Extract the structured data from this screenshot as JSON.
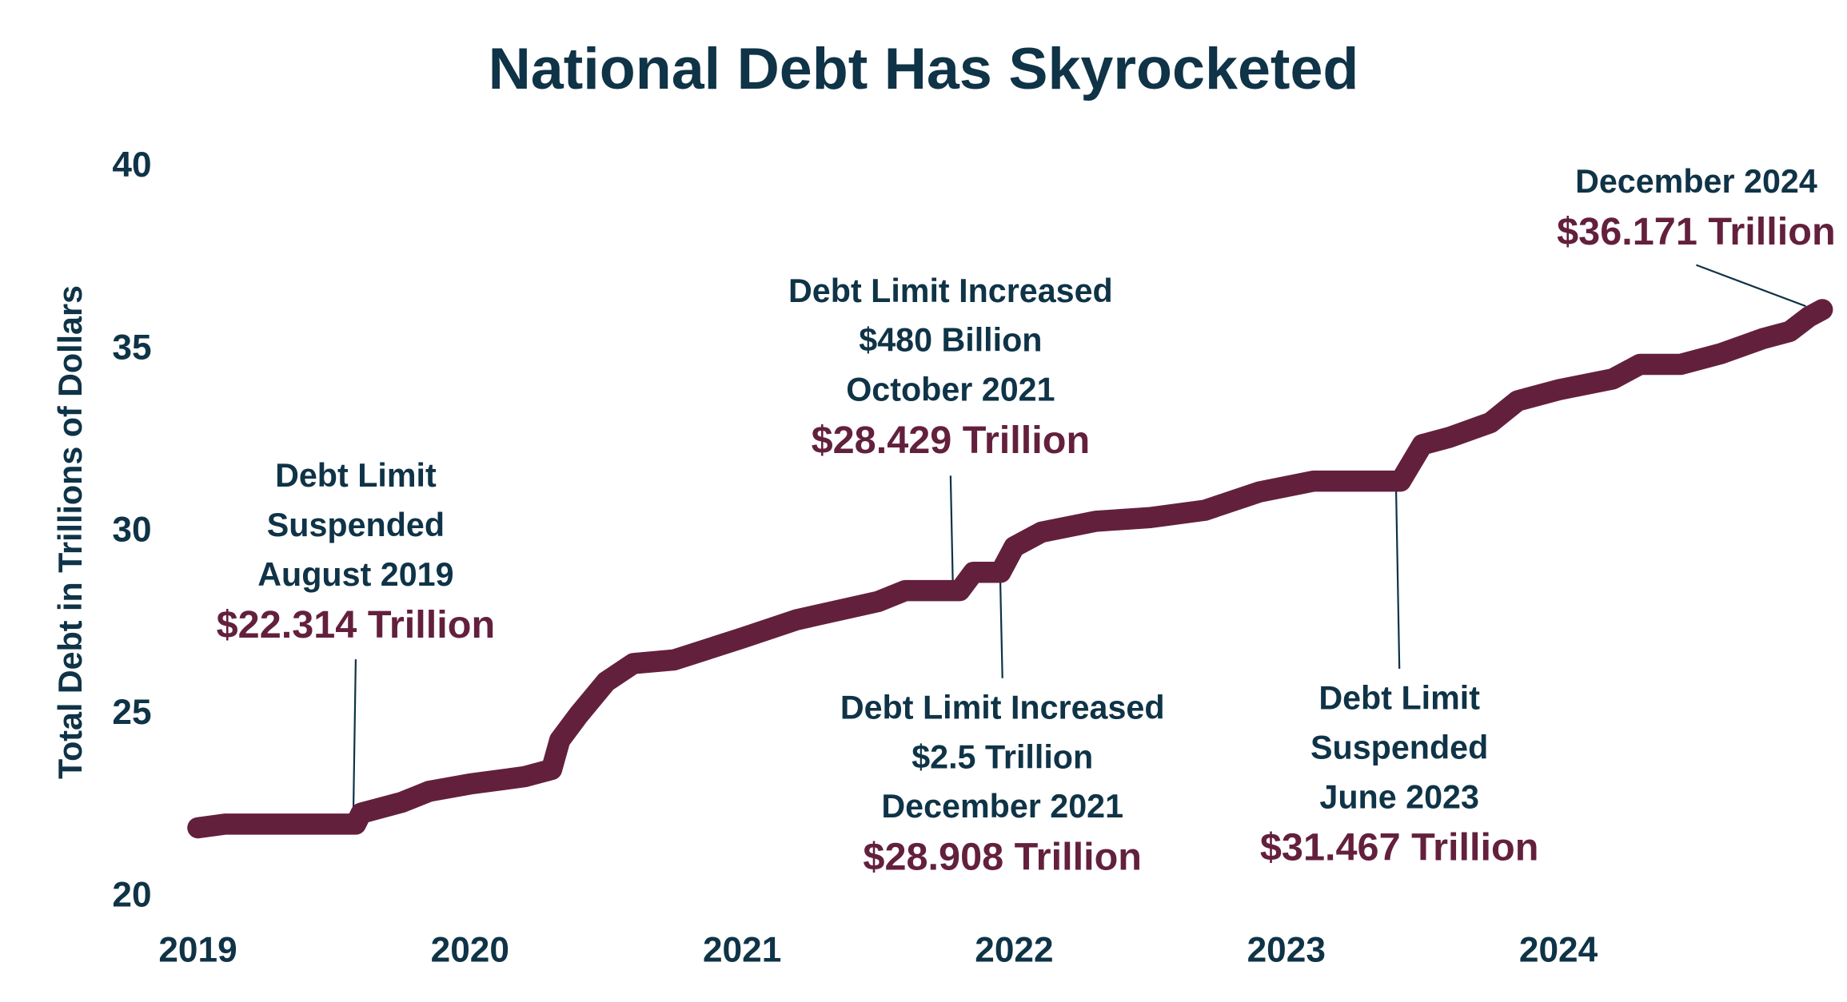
{
  "chart_data": {
    "type": "line",
    "title": "National Debt Has Skyrocketed",
    "y_label": "Total Debt in Trillions of Dollars",
    "x": [
      2019.0,
      2019.1,
      2019.58,
      2019.6,
      2019.75,
      2019.85,
      2020.0,
      2020.2,
      2020.3,
      2020.33,
      2020.4,
      2020.5,
      2020.6,
      2020.75,
      2021.0,
      2021.2,
      2021.5,
      2021.6,
      2021.8,
      2021.85,
      2021.95,
      2022.0,
      2022.1,
      2022.3,
      2022.5,
      2022.7,
      2022.9,
      2023.1,
      2023.2,
      2023.42,
      2023.5,
      2023.6,
      2023.75,
      2023.85,
      2024.0,
      2024.2,
      2024.3,
      2024.45,
      2024.6,
      2024.75,
      2024.85,
      2024.92,
      2024.97
    ],
    "series": [
      {
        "name": "Total Debt",
        "color": "#63203d",
        "values": [
          21.9,
          22.0,
          22.0,
          22.3,
          22.6,
          22.9,
          23.1,
          23.3,
          23.5,
          24.3,
          25.0,
          25.9,
          26.4,
          26.5,
          27.1,
          27.6,
          28.1,
          28.4,
          28.4,
          28.9,
          28.9,
          29.6,
          30.0,
          30.3,
          30.4,
          30.6,
          31.1,
          31.4,
          31.4,
          31.4,
          32.4,
          32.6,
          33.0,
          33.6,
          33.9,
          34.2,
          34.6,
          34.6,
          34.9,
          35.3,
          35.5,
          35.9,
          36.1
        ]
      }
    ],
    "xlim": [
      2019,
      2025
    ],
    "xticks": [
      2019,
      2020,
      2021,
      2022,
      2023,
      2024
    ],
    "ylim": [
      20,
      40
    ],
    "yticks": [
      20,
      25,
      30,
      35,
      40
    ],
    "grid": false,
    "annotations": [
      {
        "lines": [
          "Debt Limit",
          "Suspended",
          "August 2019"
        ],
        "amount": "$22.314 Trillion"
      },
      {
        "lines": [
          "Debt Limit Increased",
          "$480 Billion",
          "October 2021"
        ],
        "amount": "$28.429 Trillion"
      },
      {
        "lines": [
          "Debt Limit Increased",
          "$2.5 Trillion",
          "December 2021"
        ],
        "amount": "$28.908 Trillion"
      },
      {
        "lines": [
          "Debt Limit",
          "Suspended",
          "June 2023"
        ],
        "amount": "$31.467 Trillion"
      },
      {
        "lines": [
          "December 2024"
        ],
        "amount": "$36.171 Trillion"
      }
    ]
  }
}
